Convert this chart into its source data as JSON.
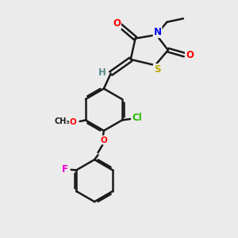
{
  "background_color": "#ebebeb",
  "bond_color": "#1a1a1a",
  "bond_width": 1.8,
  "atom_colors": {
    "O": "#ff0000",
    "N": "#0000ee",
    "S": "#bbaa00",
    "Cl": "#22bb00",
    "F": "#ee00cc",
    "H": "#5a8a8a",
    "C": "#1a1a1a"
  },
  "figsize": [
    3.0,
    3.0
  ],
  "dpi": 100,
  "font_size": 8.5,
  "font_size_ethyl": 8.0
}
